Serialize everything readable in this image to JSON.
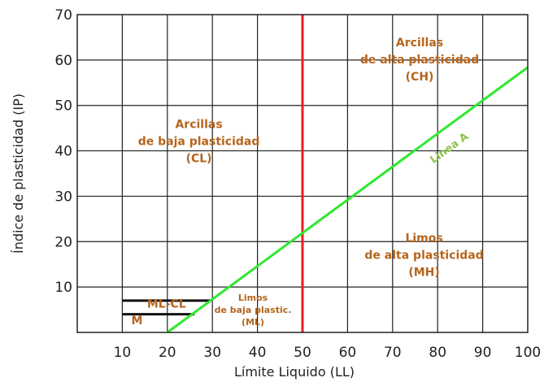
{
  "chart_data": {
    "type": "line",
    "xlabel": "Límite Liquido (LL)",
    "ylabel": "Índice de plasticidad (IP)",
    "xlim": [
      0,
      100
    ],
    "ylim": [
      0,
      70
    ],
    "x_ticks": [
      "10",
      "20",
      "30",
      "40",
      "50",
      "60",
      "70",
      "80",
      "90",
      "100"
    ],
    "y_ticks": [
      "10",
      "20",
      "30",
      "40",
      "50",
      "60",
      "70"
    ],
    "grid": true,
    "colors": {
      "grid": "#222222",
      "linea_a": "#2ee82e",
      "ll_50": "#ee1c1c",
      "region_text": "#b5651d",
      "linea_label": "#8bc34a"
    },
    "series": [
      {
        "name": "Línea A",
        "x": [
          20,
          100
        ],
        "y": [
          0,
          58.4
        ]
      }
    ],
    "vertical_line": {
      "x": 50
    },
    "ml_cl_band": {
      "x": [
        10,
        29.5
      ],
      "y_top": 7,
      "y_bottom": 4
    },
    "regions": [
      {
        "lines": [
          "Arcillas",
          "de alta plasticidad",
          "(CH)"
        ],
        "x": 76,
        "y": 63,
        "size": "big"
      },
      {
        "lines": [
          "Arcillas",
          "de baja plasticidad",
          "(CL)"
        ],
        "x": 27,
        "y": 45,
        "size": "big"
      },
      {
        "lines": [
          "Limos",
          "de alta plasticidad",
          "(MH)"
        ],
        "x": 77,
        "y": 20,
        "size": "big"
      },
      {
        "lines": [
          "Limos",
          "de baja plastic.",
          "(ML)"
        ],
        "x": 39,
        "y": 7,
        "size": "small"
      }
    ],
    "band_labels": [
      {
        "text": "ML-CL",
        "x": 15.5,
        "y": 5.5
      },
      {
        "text": "M",
        "x": 12,
        "y": 1.8
      }
    ],
    "line_label": {
      "text": "Linea A",
      "x": 83,
      "y": 40,
      "angle": -36
    }
  }
}
